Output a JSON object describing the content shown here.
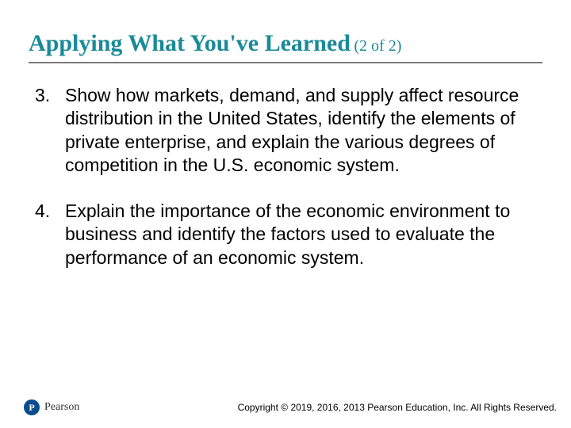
{
  "title": {
    "main": "Applying What You've Learned",
    "suffix": "(2 of 2)"
  },
  "colors": {
    "heading": "#1a8a99",
    "rule": "#7a7a7a",
    "body_text": "#000000",
    "logo_bg": "#0a4d8c",
    "background": "#ffffff"
  },
  "typography": {
    "title_font": "Times New Roman",
    "title_size_pt": 30,
    "suffix_size_pt": 20,
    "body_font": "Arial",
    "body_size_pt": 23,
    "line_height": 1.28
  },
  "list": {
    "start": 3,
    "items": [
      {
        "number": "3.",
        "text": "Show how markets, demand, and supply affect resource distribution in the United States, identify the elements of private enterprise, and explain the various degrees of competition in the U.S. economic system."
      },
      {
        "number": "4.",
        "text": "Explain the importance of the economic environment to business and identify the factors used to evaluate the performance of an economic system."
      }
    ]
  },
  "footer": {
    "logo_letter": "P",
    "logo_text": "Pearson",
    "copyright": "Copyright © 2019, 2016, 2013 Pearson Education, Inc. All Rights Reserved."
  }
}
